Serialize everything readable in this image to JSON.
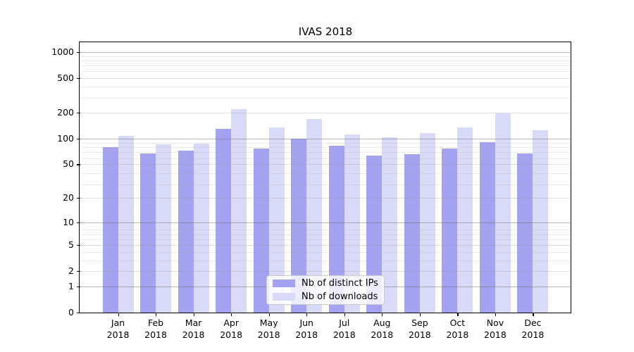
{
  "title": "IVAS 2018",
  "chart_data": {
    "type": "bar",
    "title": "IVAS 2018",
    "yscale": "log(v+1)",
    "ylim": [
      0,
      1270
    ],
    "grid": true,
    "legend_position": "lower center",
    "x_axis": {
      "months": [
        "Jan",
        "Feb",
        "Mar",
        "Apr",
        "May",
        "Jun",
        "Jul",
        "Aug",
        "Sep",
        "Oct",
        "Nov",
        "Dec"
      ],
      "year": "2018"
    },
    "categories": [
      "Jan 2018",
      "Feb 2018",
      "Mar 2018",
      "Apr 2018",
      "May 2018",
      "Jun 2018",
      "Jul 2018",
      "Aug 2018",
      "Sep 2018",
      "Oct 2018",
      "Nov 2018",
      "Dec 2018"
    ],
    "y_ticks": [
      1000,
      500,
      200,
      100,
      50,
      20,
      10,
      5,
      2,
      1,
      0
    ],
    "y_decade_ticks": [
      1000,
      100,
      10,
      1
    ],
    "y_minor_lines": [
      3,
      4,
      6,
      7,
      8,
      29,
      39,
      59,
      69,
      79,
      89,
      299,
      399,
      599,
      699,
      799,
      899
    ],
    "series": [
      {
        "name": "Nb of distinct IPs",
        "color": "#a3a3f2",
        "values": [
          80,
          67,
          72,
          130,
          77,
          100,
          82,
          63,
          66,
          76,
          91,
          67
        ]
      },
      {
        "name": "Nb of downloads",
        "color": "#d9d9f8",
        "values": [
          108,
          85,
          88,
          218,
          134,
          170,
          112,
          103,
          117,
          134,
          195,
          124
        ]
      }
    ]
  },
  "colors": {
    "background": "#ffffff",
    "spine": "#000000",
    "decade_gridline": "#b0b0b0",
    "light_gridline": "#e4e4e4",
    "text": "#000000",
    "legend_border": "#cccccc"
  }
}
